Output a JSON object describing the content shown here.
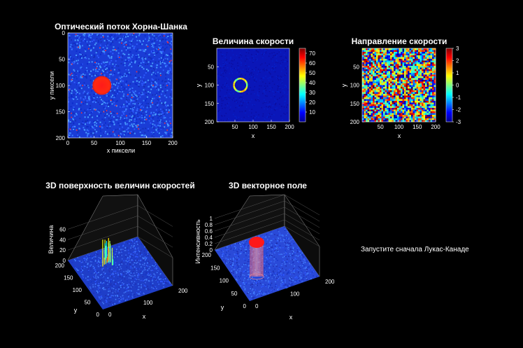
{
  "chart_data": [
    {
      "type": "heatmap",
      "title": "Оптический поток Хорна-Шанка",
      "xlabel": "x пиксели",
      "ylabel": "y пиксели",
      "xlim": [
        0,
        200
      ],
      "ylim": [
        0,
        200
      ],
      "xticks": [
        "0",
        "50",
        "100",
        "150",
        "200"
      ],
      "yticks": [
        "0",
        "50",
        "100",
        "150",
        "200"
      ],
      "colormap": "jet",
      "feature": {
        "shape": "filled circle",
        "center": [
          65,
          100
        ],
        "radius": 18,
        "color": "#ff2020"
      }
    },
    {
      "type": "heatmap",
      "title": "Величина скорости",
      "xlabel": "x",
      "ylabel": "y",
      "xlim": [
        0,
        200
      ],
      "ylim": [
        0,
        200
      ],
      "xticks": [
        "50",
        "100",
        "150",
        "200"
      ],
      "yticks": [
        "50",
        "100",
        "150",
        "200"
      ],
      "colormap": "jet",
      "colorbar": {
        "min": 0,
        "max": 75,
        "ticks": [
          "10",
          "20",
          "30",
          "40",
          "50",
          "60",
          "70"
        ]
      },
      "feature": {
        "shape": "ring",
        "center": [
          65,
          100
        ],
        "radius": 18
      }
    },
    {
      "type": "heatmap",
      "title": "Направление скорости",
      "xlabel": "x",
      "ylabel": "y",
      "xlim": [
        0,
        200
      ],
      "ylim": [
        0,
        200
      ],
      "xticks": [
        "50",
        "100",
        "150",
        "200"
      ],
      "yticks": [
        "50",
        "100",
        "150",
        "200"
      ],
      "colormap": "jet",
      "colorbar": {
        "min": -3,
        "max": 3,
        "ticks": [
          "3",
          "2",
          "1",
          "0",
          "-1",
          "-2",
          "-3"
        ]
      },
      "feature": {
        "shape": "random noise"
      }
    },
    {
      "type": "surface",
      "title": "3D поверхность величин скоростей",
      "xlabel": "x",
      "ylabel": "y",
      "zlabel": "Величина",
      "xticks": [
        "0",
        "100",
        "200"
      ],
      "yticks": [
        "200",
        "150",
        "100",
        "50",
        "0"
      ],
      "zticks": [
        "0",
        "20",
        "40",
        "60"
      ],
      "zlim": [
        0,
        70
      ]
    },
    {
      "type": "surface",
      "title": "3D векторное поле",
      "xlabel": "x",
      "ylabel": "y",
      "zlabel": "Интенсивность",
      "xticks": [
        "0",
        "100",
        "200"
      ],
      "yticks": [
        "200",
        "150",
        "100",
        "50",
        "0"
      ],
      "zticks": [
        "0",
        "0.2",
        "0.4",
        "0.6",
        "0.8",
        "1"
      ],
      "zlim": [
        0,
        1
      ]
    }
  ],
  "message": "Запустите сначала Лукас-Канаде"
}
